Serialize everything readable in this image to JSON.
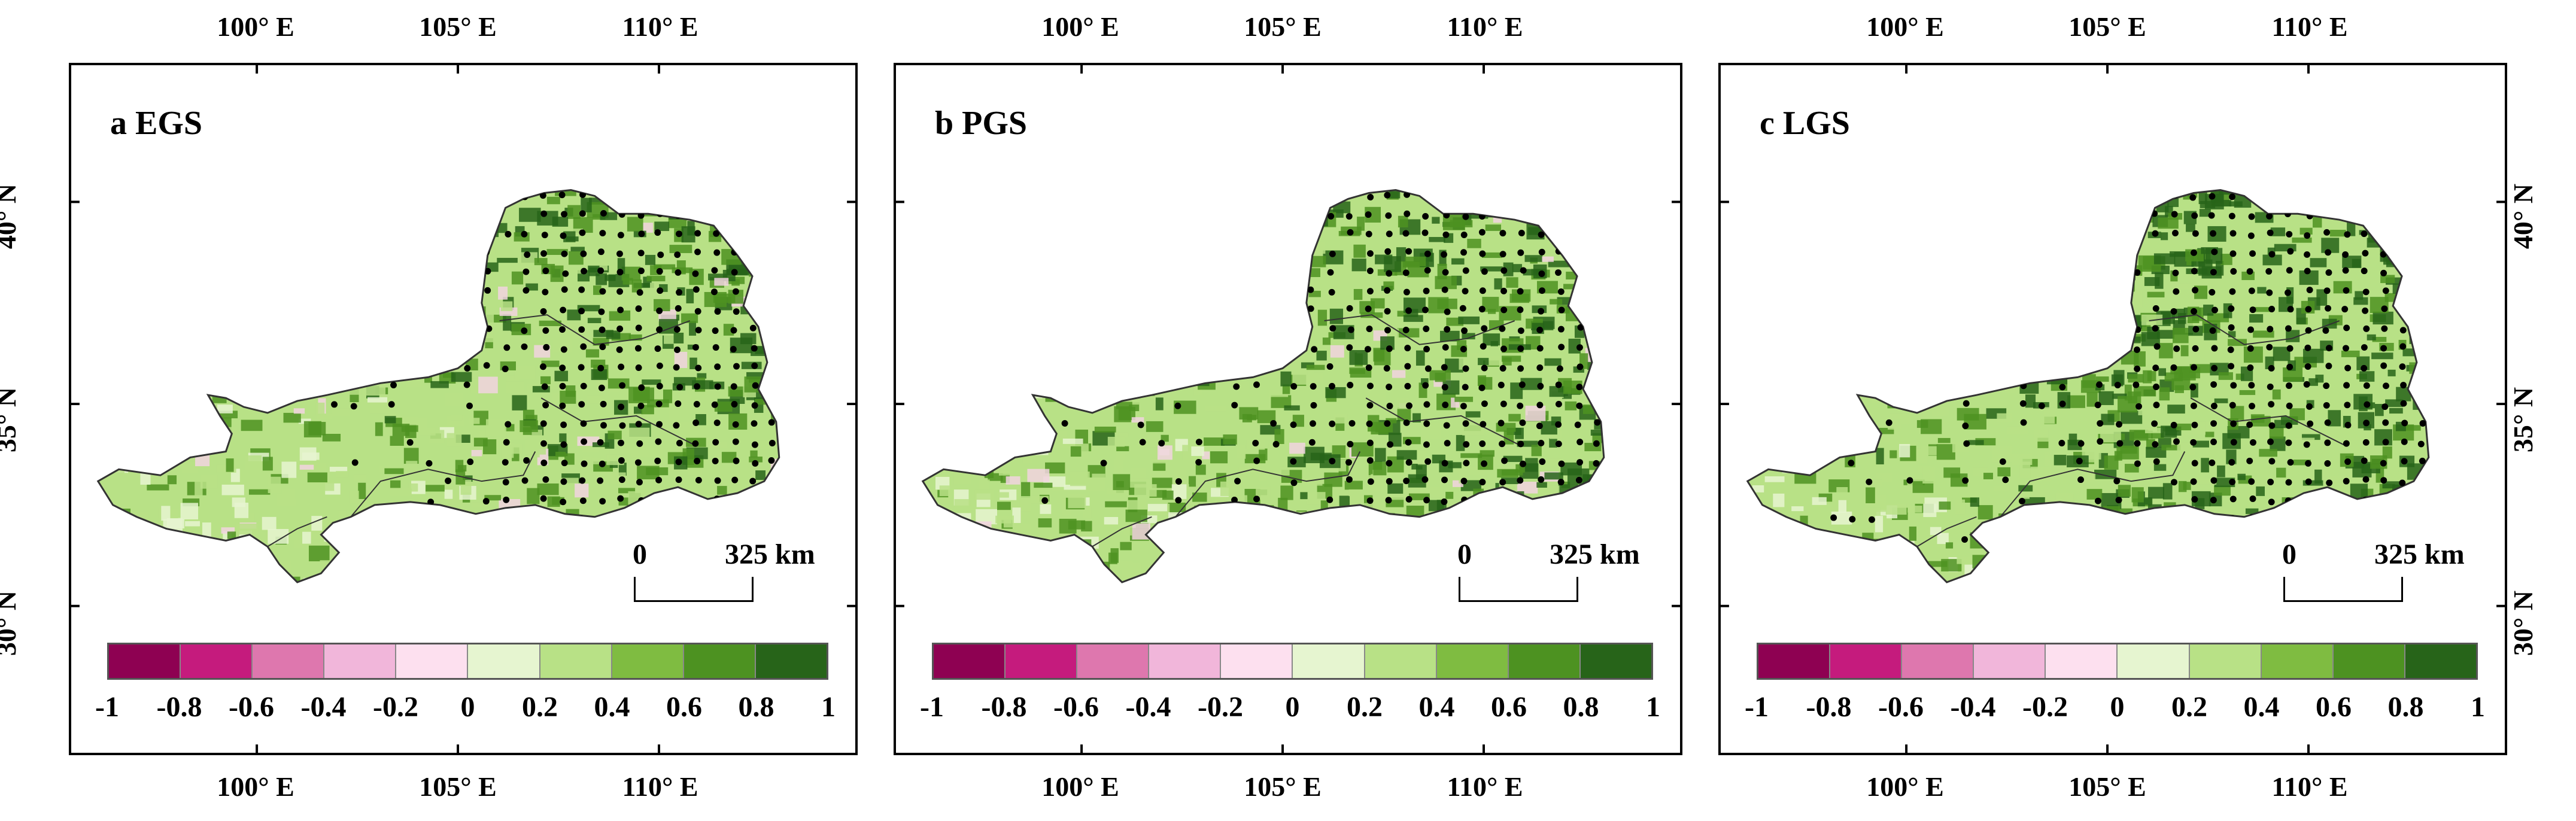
{
  "panels": [
    {
      "label": "a EGS"
    },
    {
      "label": "b PGS"
    },
    {
      "label": "c LGS"
    }
  ],
  "lon_ticks": [
    "100° E",
    "105° E",
    "110° E"
  ],
  "lat_ticks": [
    "40° N",
    "35° N",
    "30° N"
  ],
  "scale": {
    "start": "0",
    "end": "325 km"
  },
  "legend": {
    "ticks": [
      "-1",
      "-0.8",
      "-0.6",
      "-0.4",
      "-0.2",
      "0",
      "0.2",
      "0.4",
      "0.6",
      "0.8",
      "1"
    ],
    "colors": [
      "#8e0152",
      "#c51b7d",
      "#de77ae",
      "#f1b6da",
      "#fde0ef",
      "#e6f5d0",
      "#b8e186",
      "#7fbc41",
      "#4d9221",
      "#276419"
    ]
  },
  "colors": {
    "region_base": "#b8e186",
    "region_dark": "#276419",
    "region_mid": "#4d9221",
    "region_light": "#e6f5d0",
    "region_pink": "#f1d3df",
    "dots": "#000000"
  }
}
